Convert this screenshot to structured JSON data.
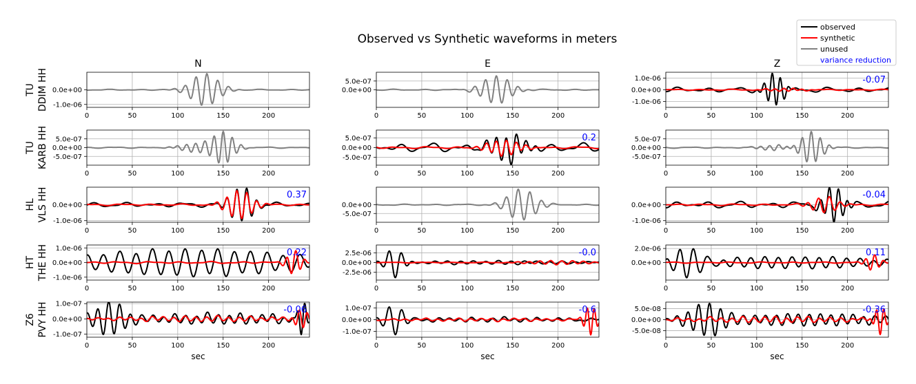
{
  "figure": {
    "title": "Observed vs Synthetic waveforms in meters",
    "column_titles": [
      "N",
      "E",
      "Z"
    ],
    "xlabel": "sec"
  },
  "legend": {
    "placement": "top-right",
    "items": [
      {
        "label": "observed",
        "color": "#000000",
        "kind": "line"
      },
      {
        "label": "synthetic",
        "color": "#ff0000",
        "kind": "line"
      },
      {
        "label": "unused",
        "color": "#808080",
        "kind": "line"
      },
      {
        "label": "variance reduction",
        "color": "#0000ff",
        "kind": "text"
      }
    ]
  },
  "colors": {
    "observed": "#000000",
    "synthetic": "#ff0000",
    "unused": "#808080",
    "variance_reduction": "#0000ff",
    "grid": "#b0b0b0"
  },
  "chart_data": {
    "type": "line",
    "grid": true,
    "xlim": [
      0,
      245
    ],
    "xticks": [
      0,
      50,
      100,
      150,
      200
    ],
    "xtick_labels": [
      "0",
      "50",
      "100",
      "150",
      "200"
    ],
    "rows": [
      {
        "station_label": [
          "TU",
          "DDIM HH"
        ],
        "panels": [
          {
            "component": "N",
            "mode": "unused",
            "vr": null,
            "ylim": [
              -1.2e-06,
              1.2e-06
            ],
            "yticks": [
              0,
              -1e-06
            ],
            "ytick_labels": [
              "0.0e+00",
              "-1.0e-06"
            ],
            "waves": [
              {
                "series": "unused",
                "bursts": [
                  {
                    "center": 130,
                    "width": 20,
                    "amp": 1.1e-06,
                    "period": 12
                  }
                ],
                "noise": 2e-08,
                "seed": 3
              }
            ]
          },
          {
            "component": "E",
            "mode": "unused",
            "vr": null,
            "ylim": [
              -1e-06,
              1e-06
            ],
            "yticks": [
              5e-07,
              0
            ],
            "ytick_labels": [
              "5.0e-07",
              "0.0e+00"
            ],
            "waves": [
              {
                "series": "unused",
                "bursts": [
                  {
                    "center": 132,
                    "width": 20,
                    "amp": 8e-07,
                    "period": 12
                  }
                ],
                "noise": 2e-08,
                "seed": 5
              }
            ]
          },
          {
            "component": "Z",
            "mode": "used",
            "vr": "-0.07",
            "ylim": [
              -1.5e-06,
              1.5e-06
            ],
            "yticks": [
              1e-06,
              0,
              -1e-06
            ],
            "ytick_labels": [
              "1.0e-06",
              "0.0e+00",
              "-1.0e-06"
            ],
            "waves": [
              {
                "series": "observed",
                "bursts": [
                  {
                    "center": 120,
                    "width": 12,
                    "amp": 1.4e-06,
                    "period": 9
                  }
                ],
                "noise": 1.2e-07,
                "seed": 7
              },
              {
                "series": "synthetic",
                "bursts": [
                  {
                    "center": 130,
                    "width": 25,
                    "amp": 1.2e-07,
                    "period": 10
                  }
                ],
                "noise": 3e-08,
                "seed": 8
              }
            ]
          }
        ]
      },
      {
        "station_label": [
          "TU",
          "KARB HH"
        ],
        "panels": [
          {
            "component": "N",
            "mode": "unused",
            "vr": null,
            "ylim": [
              -1e-06,
              1e-06
            ],
            "yticks": [
              5e-07,
              0,
              -5e-07
            ],
            "ytick_labels": [
              "5.0e-07",
              "0.0e+00",
              "-5.0e-07"
            ],
            "waves": [
              {
                "series": "unused",
                "bursts": [
                  {
                    "center": 150,
                    "width": 15,
                    "amp": 9e-07,
                    "period": 10
                  },
                  {
                    "center": 120,
                    "width": 20,
                    "amp": 2.5e-07,
                    "period": 10
                  }
                ],
                "noise": 2e-08,
                "seed": 11
              }
            ]
          },
          {
            "component": "E",
            "mode": "used",
            "vr": "0.2",
            "ylim": [
              -9e-07,
              9e-07
            ],
            "yticks": [
              5e-07,
              0,
              -5e-07
            ],
            "ytick_labels": [
              "5.0e-07",
              "0.0e+00",
              "-5.0e-07"
            ],
            "waves": [
              {
                "series": "observed",
                "bursts": [
                  {
                    "center": 145,
                    "width": 22,
                    "amp": 7e-07,
                    "period": 11
                  }
                ],
                "noise": 1.3e-07,
                "seed": 13
              },
              {
                "series": "synthetic",
                "bursts": [
                  {
                    "center": 140,
                    "width": 22,
                    "amp": 4e-07,
                    "period": 11
                  }
                ],
                "noise": 3e-08,
                "seed": 14
              }
            ]
          },
          {
            "component": "Z",
            "mode": "unused",
            "vr": null,
            "ylim": [
              -1e-06,
              1e-06
            ],
            "yticks": [
              5e-07,
              0,
              -5e-07
            ],
            "ytick_labels": [
              "5.0e-07",
              "0.0e+00",
              "-5.0e-07"
            ],
            "waves": [
              {
                "series": "unused",
                "bursts": [
                  {
                    "center": 160,
                    "width": 15,
                    "amp": 9e-07,
                    "period": 10
                  },
                  {
                    "center": 120,
                    "width": 20,
                    "amp": 1.5e-07,
                    "period": 10
                  }
                ],
                "noise": 2e-08,
                "seed": 17
              }
            ]
          }
        ]
      },
      {
        "station_label": [
          "HL",
          "VLS HH"
        ],
        "panels": [
          {
            "component": "N",
            "mode": "used",
            "vr": "0.37",
            "ylim": [
              -1.1e-06,
              1.1e-06
            ],
            "yticks": [
              0,
              -1e-06
            ],
            "ytick_labels": [
              "0.0e+00",
              "-1.0e-06"
            ],
            "waves": [
              {
                "series": "observed",
                "bursts": [
                  {
                    "center": 170,
                    "width": 16,
                    "amp": 1.1e-06,
                    "period": 11
                  }
                ],
                "noise": 8e-08,
                "seed": 19
              },
              {
                "series": "synthetic",
                "bursts": [
                  {
                    "center": 168,
                    "width": 18,
                    "amp": 9e-07,
                    "period": 11
                  }
                ],
                "noise": 3e-08,
                "seed": 20
              }
            ]
          },
          {
            "component": "E",
            "mode": "unused",
            "vr": null,
            "ylim": [
              -1e-06,
              1e-06
            ],
            "yticks": [
              0,
              -5e-07
            ],
            "ytick_labels": [
              "0.0e+00",
              "-5.0e-07"
            ],
            "waves": [
              {
                "series": "unused",
                "bursts": [
                  {
                    "center": 160,
                    "width": 20,
                    "amp": 9e-07,
                    "period": 13
                  }
                ],
                "noise": 2e-08,
                "seed": 23
              }
            ]
          },
          {
            "component": "Z",
            "mode": "used",
            "vr": "-0.04",
            "ylim": [
              -1.1e-06,
              1.1e-06
            ],
            "yticks": [
              0,
              -1e-06
            ],
            "ytick_labels": [
              "0.0e+00",
              "-1.0e-06"
            ],
            "waves": [
              {
                "series": "observed",
                "bursts": [
                  {
                    "center": 185,
                    "width": 14,
                    "amp": 1.1e-06,
                    "period": 10
                  }
                ],
                "noise": 1.2e-07,
                "seed": 29
              },
              {
                "series": "synthetic",
                "bursts": [
                  {
                    "center": 175,
                    "width": 18,
                    "amp": 5e-07,
                    "period": 12
                  }
                ],
                "noise": 3e-08,
                "seed": 30
              }
            ]
          }
        ]
      },
      {
        "station_label": [
          "HT",
          "THE HH"
        ],
        "panels": [
          {
            "component": "N",
            "mode": "used",
            "vr": "0.22",
            "ylim": [
              -1.2e-06,
              1.2e-06
            ],
            "yticks": [
              1e-06,
              0,
              -1e-06
            ],
            "ytick_labels": [
              "1.0e-06",
              "0.0e+00",
              "-1.0e-06"
            ],
            "waves": [
              {
                "series": "observed",
                "bursts": [
                  {
                    "center": 120,
                    "width": 150,
                    "amp": 9e-07,
                    "period": 18
                  }
                ],
                "noise": 1e-07,
                "seed": 31
              },
              {
                "series": "synthetic",
                "bursts": [
                  {
                    "center": 228,
                    "width": 10,
                    "amp": 8e-07,
                    "period": 10
                  }
                ],
                "noise": 4e-08,
                "seed": 32
              }
            ]
          },
          {
            "component": "E",
            "mode": "used",
            "vr": "-0.0",
            "ylim": [
              -4.5e-06,
              4.5e-06
            ],
            "yticks": [
              2.5e-06,
              0,
              -2.5e-06
            ],
            "ytick_labels": [
              "2.5e-06",
              "0.0e+00",
              "-2.5e-06"
            ],
            "waves": [
              {
                "series": "observed",
                "bursts": [
                  {
                    "center": 20,
                    "width": 12,
                    "amp": 4e-06,
                    "period": 14
                  },
                  {
                    "center": 130,
                    "width": 120,
                    "amp": 4e-07,
                    "period": 14
                  }
                ],
                "noise": 1e-07,
                "seed": 37
              },
              {
                "series": "synthetic",
                "bursts": [
                  {
                    "center": 200,
                    "width": 40,
                    "amp": 5e-07,
                    "period": 12
                  }
                ],
                "noise": 5e-08,
                "seed": 38
              }
            ]
          },
          {
            "component": "Z",
            "mode": "used",
            "vr": "0.11",
            "ylim": [
              -2.5e-06,
              2.5e-06
            ],
            "yticks": [
              2e-06,
              0
            ],
            "ytick_labels": [
              "2.0e-06",
              "0.0e+00"
            ],
            "waves": [
              {
                "series": "observed",
                "bursts": [
                  {
                    "center": 25,
                    "width": 20,
                    "amp": 2.2e-06,
                    "period": 15
                  },
                  {
                    "center": 140,
                    "width": 120,
                    "amp": 8e-07,
                    "period": 15
                  }
                ],
                "noise": 1e-07,
                "seed": 41
              },
              {
                "series": "synthetic",
                "bursts": [
                  {
                    "center": 228,
                    "width": 10,
                    "amp": 1.1e-06,
                    "period": 10
                  }
                ],
                "noise": 5e-08,
                "seed": 42
              }
            ]
          }
        ]
      },
      {
        "station_label": [
          "Z6",
          "PVY HH"
        ],
        "panels": [
          {
            "component": "N",
            "mode": "used",
            "vr": "-0.06",
            "ylim": [
              -1.2e-07,
              1.1e-07
            ],
            "yticks": [
              1e-07,
              0,
              -1e-07
            ],
            "ytick_labels": [
              "1.0e-07",
              "0.0e+00",
              "-1.0e-07"
            ],
            "waves": [
              {
                "series": "observed",
                "bursts": [
                  {
                    "center": 25,
                    "width": 22,
                    "amp": 1e-07,
                    "period": 12
                  },
                  {
                    "center": 150,
                    "width": 110,
                    "amp": 3e-08,
                    "period": 12
                  },
                  {
                    "center": 237,
                    "width": 6,
                    "amp": 1e-07,
                    "period": 8
                  }
                ],
                "noise": 8e-09,
                "seed": 43
              },
              {
                "series": "synthetic",
                "bursts": [
                  {
                    "center": 130,
                    "width": 120,
                    "amp": 1.5e-08,
                    "period": 12
                  },
                  {
                    "center": 236,
                    "width": 8,
                    "amp": 7e-08,
                    "period": 9
                  }
                ],
                "noise": 4e-09,
                "seed": 44
              }
            ]
          },
          {
            "component": "E",
            "mode": "used",
            "vr": "-0.6",
            "ylim": [
              -1.5e-07,
              1.5e-07
            ],
            "yticks": [
              1e-07,
              0,
              -1e-07
            ],
            "ytick_labels": [
              "1.0e-07",
              "0.0e+00",
              "-1.0e-07"
            ],
            "waves": [
              {
                "series": "observed",
                "bursts": [
                  {
                    "center": 20,
                    "width": 14,
                    "amp": 1.3e-07,
                    "period": 14
                  },
                  {
                    "center": 130,
                    "width": 110,
                    "amp": 1.5e-08,
                    "period": 12
                  }
                ],
                "noise": 6e-09,
                "seed": 47
              },
              {
                "series": "synthetic",
                "bursts": [
                  {
                    "center": 236,
                    "width": 8,
                    "amp": 1.3e-07,
                    "period": 8
                  },
                  {
                    "center": 120,
                    "width": 120,
                    "amp": 1e-08,
                    "period": 12
                  }
                ],
                "noise": 4e-09,
                "seed": 48
              }
            ]
          },
          {
            "component": "Z",
            "mode": "used",
            "vr": "-0.36",
            "ylim": [
              -8e-08,
              8e-08
            ],
            "yticks": [
              5e-08,
              0,
              -5e-08
            ],
            "ytick_labels": [
              "5.0e-08",
              "0.0e+00",
              "-5.0e-08"
            ],
            "waves": [
              {
                "series": "observed",
                "bursts": [
                  {
                    "center": 45,
                    "width": 25,
                    "amp": 7e-08,
                    "period": 12
                  },
                  {
                    "center": 160,
                    "width": 110,
                    "amp": 2.5e-08,
                    "period": 12
                  }
                ],
                "noise": 4e-09,
                "seed": 53
              },
              {
                "series": "synthetic",
                "bursts": [
                  {
                    "center": 236,
                    "width": 8,
                    "amp": 6e-08,
                    "period": 8
                  },
                  {
                    "center": 120,
                    "width": 110,
                    "amp": 1.2e-08,
                    "period": 12
                  }
                ],
                "noise": 3e-09,
                "seed": 54
              }
            ]
          }
        ]
      }
    ]
  }
}
